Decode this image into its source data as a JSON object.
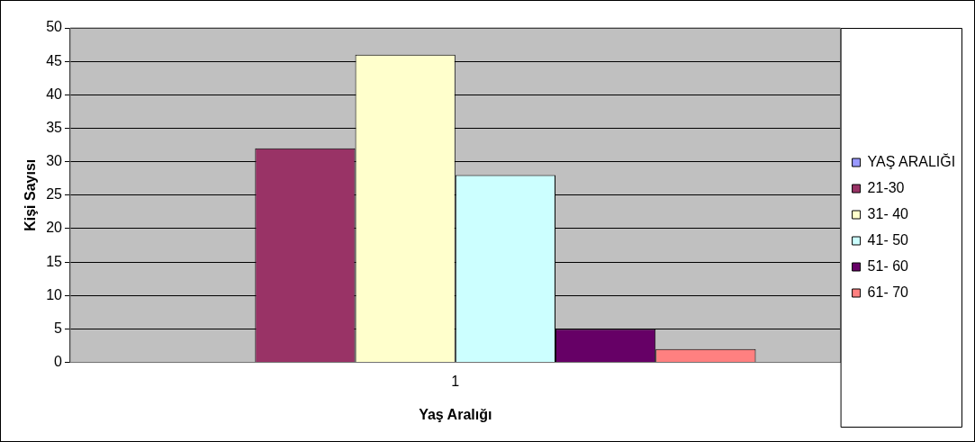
{
  "chart_data": {
    "type": "bar",
    "xlabel": "Yaş Aralığı",
    "ylabel": "Kişi Sayısı",
    "categories": [
      "1"
    ],
    "series": [
      {
        "name": "YAŞ ARALIĞI",
        "color": "#9999ff",
        "values": [
          0
        ]
      },
      {
        "name": "21-30",
        "color": "#993366",
        "values": [
          32
        ]
      },
      {
        "name": "31- 40",
        "color": "#ffffcc",
        "values": [
          46
        ]
      },
      {
        "name": "41- 50",
        "color": "#ccffff",
        "values": [
          28
        ]
      },
      {
        "name": "51- 60",
        "color": "#660066",
        "values": [
          5
        ]
      },
      {
        "name": "61- 70",
        "color": "#ff8080",
        "values": [
          2
        ]
      }
    ],
    "ylim": [
      0,
      50
    ],
    "yticks": [
      0,
      5,
      10,
      15,
      20,
      25,
      30,
      35,
      40,
      45,
      50
    ],
    "grid": "y",
    "legend": "right"
  }
}
